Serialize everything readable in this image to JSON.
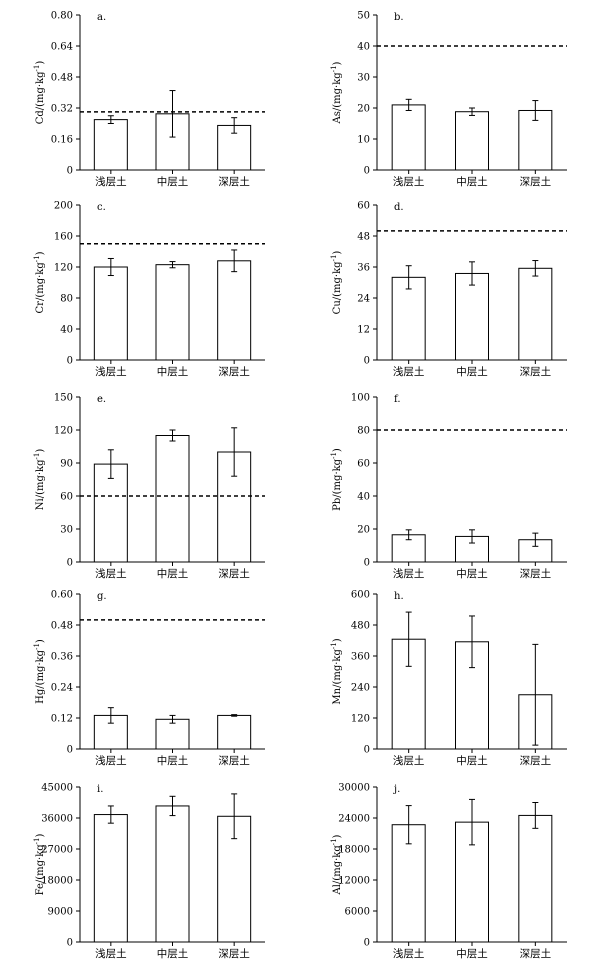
{
  "chart_data": [
    {
      "type": "bar",
      "panel_label": "a.",
      "categories": [
        "浅层土",
        "中层土",
        "深层土"
      ],
      "values": [
        0.26,
        0.29,
        0.23
      ],
      "errors": [
        0.02,
        0.12,
        0.04
      ],
      "ylabel": "Cd/(mg·kg",
      "ylabel_sup": "-1",
      "ylabel_tail": ")",
      "ylim": [
        0,
        0.8
      ],
      "yticks": [
        "0",
        "0.16",
        "0.32",
        "0.48",
        "0.64",
        "0.80"
      ],
      "reference_line": 0.3
    },
    {
      "type": "bar",
      "panel_label": "b.",
      "categories": [
        "浅层土",
        "中层土",
        "深层土"
      ],
      "values": [
        21,
        18.8,
        19.2
      ],
      "errors": [
        1.8,
        1.2,
        3.2
      ],
      "ylabel": "As/(mg·kg",
      "ylabel_sup": "-1",
      "ylabel_tail": ")",
      "ylim": [
        0,
        50
      ],
      "yticks": [
        "0",
        "10",
        "20",
        "30",
        "40",
        "50"
      ],
      "reference_line": 40
    },
    {
      "type": "bar",
      "panel_label": "c.",
      "categories": [
        "浅层土",
        "中层土",
        "深层土"
      ],
      "values": [
        120,
        123,
        128
      ],
      "errors": [
        11,
        4,
        14
      ],
      "ylabel": "Cr/(mg·kg",
      "ylabel_sup": "-1",
      "ylabel_tail": ")",
      "ylim": [
        0,
        200
      ],
      "yticks": [
        "0",
        "40",
        "80",
        "120",
        "160",
        "200"
      ],
      "reference_line": 150
    },
    {
      "type": "bar",
      "panel_label": "d.",
      "categories": [
        "浅层土",
        "中层土",
        "深层土"
      ],
      "values": [
        32,
        33.5,
        35.5
      ],
      "errors": [
        4.5,
        4.5,
        3
      ],
      "ylabel": "Cu/(mg·kg",
      "ylabel_sup": "-1",
      "ylabel_tail": ")",
      "ylim": [
        0,
        60
      ],
      "yticks": [
        "0",
        "12",
        "24",
        "36",
        "48",
        "60"
      ],
      "reference_line": 50
    },
    {
      "type": "bar",
      "panel_label": "e.",
      "categories": [
        "浅层土",
        "中层土",
        "深层土"
      ],
      "values": [
        89,
        115,
        100
      ],
      "errors": [
        13,
        5,
        22
      ],
      "ylabel": "Ni/(mg·kg",
      "ylabel_sup": "-1",
      "ylabel_tail": ")",
      "ylim": [
        0,
        150
      ],
      "yticks": [
        "0",
        "30",
        "60",
        "90",
        "120",
        "150"
      ],
      "reference_line": 60
    },
    {
      "type": "bar",
      "panel_label": "f.",
      "categories": [
        "浅层土",
        "中层土",
        "深层土"
      ],
      "values": [
        16.5,
        15.5,
        13.5
      ],
      "errors": [
        3,
        4,
        4
      ],
      "ylabel": "Pb/(mg·kg",
      "ylabel_sup": "-1",
      "ylabel_tail": ")",
      "ylim": [
        0,
        100
      ],
      "yticks": [
        "0",
        "20",
        "40",
        "60",
        "80",
        "100"
      ],
      "reference_line": 80
    },
    {
      "type": "bar",
      "panel_label": "g.",
      "categories": [
        "浅层土",
        "中层土",
        "深层土"
      ],
      "values": [
        0.13,
        0.115,
        0.13
      ],
      "errors": [
        0.03,
        0.015,
        0.003
      ],
      "ylabel": "Hg/(mg·kg",
      "ylabel_sup": "-1",
      "ylabel_tail": ")",
      "ylim": [
        0,
        0.6
      ],
      "yticks": [
        "0",
        "0.12",
        "0.24",
        "0.36",
        "0.48",
        "0.60"
      ],
      "reference_line": 0.5
    },
    {
      "type": "bar",
      "panel_label": "h.",
      "categories": [
        "浅层土",
        "中层土",
        "深层土"
      ],
      "values": [
        425,
        415,
        210
      ],
      "errors": [
        105,
        100,
        195
      ],
      "ylabel": "Mn/(mg·kg",
      "ylabel_sup": "-1",
      "ylabel_tail": ")",
      "ylim": [
        0,
        600
      ],
      "yticks": [
        "0",
        "120",
        "240",
        "360",
        "480",
        "600"
      ],
      "reference_line": null
    },
    {
      "type": "bar",
      "panel_label": "i.",
      "categories": [
        "浅层土",
        "中层土",
        "深层土"
      ],
      "values": [
        37000,
        39500,
        36500
      ],
      "errors": [
        2500,
        2800,
        6500
      ],
      "ylabel": "Fe/(mg·kg",
      "ylabel_sup": "-1",
      "ylabel_tail": ")",
      "ylim": [
        0,
        45000
      ],
      "yticks": [
        "0",
        "9000",
        "18000",
        "27000",
        "36000",
        "45000"
      ],
      "reference_line": null
    },
    {
      "type": "bar",
      "panel_label": "j.",
      "categories": [
        "浅层土",
        "中层土",
        "深层土"
      ],
      "values": [
        22700,
        23200,
        24500
      ],
      "errors": [
        3700,
        4400,
        2500
      ],
      "ylabel": "Al/(mg·kg",
      "ylabel_sup": "-1",
      "ylabel_tail": ")",
      "ylim": [
        0,
        30000
      ],
      "yticks": [
        "0",
        "6000",
        "12000",
        "18000",
        "24000",
        "30000"
      ],
      "reference_line": null
    }
  ]
}
